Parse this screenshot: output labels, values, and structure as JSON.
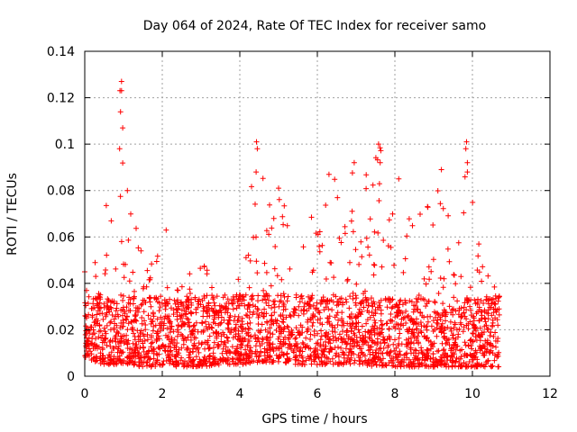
{
  "chart_data": {
    "type": "scatter",
    "title": "Day 064 of 2024, Rate Of TEC Index for receiver samo",
    "xlabel": "GPS time / hours",
    "ylabel": "ROTI / TECUs",
    "xlim": [
      0,
      12
    ],
    "ylim": [
      0,
      0.14
    ],
    "x_ticks": [
      0,
      2,
      4,
      6,
      8,
      10,
      12
    ],
    "x_tick_labels": [
      "0",
      "2",
      "4",
      "6",
      "8",
      "10",
      "12"
    ],
    "y_ticks": [
      0,
      0.02,
      0.04,
      0.06,
      0.08,
      0.1,
      0.12,
      0.14
    ],
    "y_tick_labels": [
      "0",
      "0.02",
      "0.04",
      "0.06",
      "0.08",
      "0.1",
      "0.12",
      "0.14"
    ],
    "grid": true,
    "marker": "plus",
    "marker_color": "#ff0000",
    "data_extent_hours": [
      0,
      10.7
    ],
    "series": [
      {
        "name": "ROTI",
        "envelope": [
          {
            "x": 0.0,
            "low": 0.008,
            "high": 0.045
          },
          {
            "x": 0.3,
            "low": 0.006,
            "high": 0.065
          },
          {
            "x": 0.5,
            "low": 0.005,
            "high": 0.07
          },
          {
            "x": 0.9,
            "low": 0.005,
            "high": 0.127
          },
          {
            "x": 1.1,
            "low": 0.005,
            "high": 0.09
          },
          {
            "x": 1.5,
            "low": 0.004,
            "high": 0.05
          },
          {
            "x": 2.0,
            "low": 0.004,
            "high": 0.063
          },
          {
            "x": 2.5,
            "low": 0.004,
            "high": 0.04
          },
          {
            "x": 3.0,
            "low": 0.004,
            "high": 0.05
          },
          {
            "x": 3.5,
            "low": 0.005,
            "high": 0.04
          },
          {
            "x": 4.0,
            "low": 0.005,
            "high": 0.045
          },
          {
            "x": 4.4,
            "low": 0.006,
            "high": 0.101
          },
          {
            "x": 5.0,
            "low": 0.006,
            "high": 0.081
          },
          {
            "x": 5.5,
            "low": 0.005,
            "high": 0.07
          },
          {
            "x": 6.0,
            "low": 0.005,
            "high": 0.07
          },
          {
            "x": 6.5,
            "low": 0.005,
            "high": 0.088
          },
          {
            "x": 7.0,
            "low": 0.005,
            "high": 0.09
          },
          {
            "x": 7.6,
            "low": 0.004,
            "high": 0.101
          },
          {
            "x": 8.0,
            "low": 0.004,
            "high": 0.065
          },
          {
            "x": 8.5,
            "low": 0.004,
            "high": 0.07
          },
          {
            "x": 9.0,
            "low": 0.004,
            "high": 0.075
          },
          {
            "x": 9.2,
            "low": 0.004,
            "high": 0.09
          },
          {
            "x": 9.5,
            "low": 0.004,
            "high": 0.06
          },
          {
            "x": 9.9,
            "low": 0.004,
            "high": 0.101
          },
          {
            "x": 10.3,
            "low": 0.004,
            "high": 0.045
          },
          {
            "x": 10.7,
            "low": 0.004,
            "high": 0.049
          }
        ],
        "notable_points": [
          {
            "x": 0.95,
            "y": 0.127
          },
          {
            "x": 0.95,
            "y": 0.123
          },
          {
            "x": 0.98,
            "y": 0.107
          },
          {
            "x": 0.9,
            "y": 0.098
          },
          {
            "x": 4.43,
            "y": 0.101
          },
          {
            "x": 4.45,
            "y": 0.098
          },
          {
            "x": 4.42,
            "y": 0.088
          },
          {
            "x": 7.58,
            "y": 0.1
          },
          {
            "x": 7.62,
            "y": 0.092
          },
          {
            "x": 9.85,
            "y": 0.101
          },
          {
            "x": 9.83,
            "y": 0.098
          },
          {
            "x": 9.87,
            "y": 0.088
          },
          {
            "x": 9.2,
            "y": 0.089
          },
          {
            "x": 6.95,
            "y": 0.092
          },
          {
            "x": 6.3,
            "y": 0.087
          },
          {
            "x": 5.0,
            "y": 0.081
          },
          {
            "x": 8.1,
            "y": 0.085
          },
          {
            "x": 1.1,
            "y": 0.08
          },
          {
            "x": 2.1,
            "y": 0.063
          },
          {
            "x": 0.0,
            "y": 0.045
          }
        ]
      }
    ]
  }
}
